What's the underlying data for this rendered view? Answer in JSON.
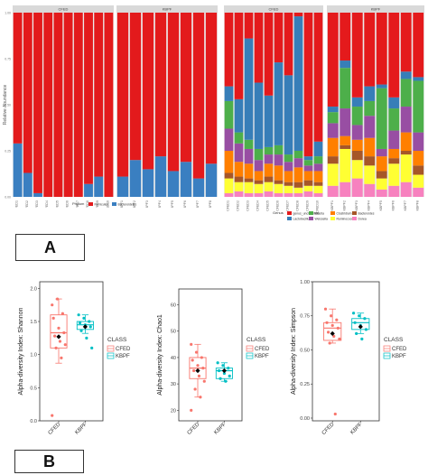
{
  "panel_labels": [
    "A",
    "B"
  ],
  "colors": {
    "firmicutes": "#E31A1C",
    "bacteroidetes": "#3A7FC1",
    "strip_bg": "#D9D9D9",
    "panel_bg": "#EBEBEB",
    "grid": "#FFFFFF",
    "cfed": "#F8766D",
    "kbpf": "#00BFC4",
    "mean": "#000000"
  },
  "chart_data": [
    {
      "type": "bar",
      "stacked": true,
      "panel": "A-left",
      "facets": [
        "CFED",
        "KBPF"
      ],
      "ylabel": "Relative Abundance",
      "ylim": [
        0,
        1
      ],
      "yticks": [
        "0.00",
        "0.25",
        "0.50",
        "0.75",
        "1.00"
      ],
      "legend_title": "Phylum",
      "legend_position": "bottom",
      "grid": true,
      "categories": [
        "CFED1",
        "CFED2",
        "CFED3",
        "CFED4",
        "CFED5",
        "CFED6",
        "CFED7",
        "CFED8",
        "CFED9",
        "CFED10",
        "KBPF1",
        "KBPF2",
        "KBPF3",
        "KBPF4",
        "KBPF5",
        "KBPF6",
        "KBPF7",
        "KBPF8"
      ],
      "category_facet": [
        "CFED",
        "CFED",
        "CFED",
        "CFED",
        "CFED",
        "CFED",
        "CFED",
        "CFED",
        "CFED",
        "CFED",
        "KBPF",
        "KBPF",
        "KBPF",
        "KBPF",
        "KBPF",
        "KBPF",
        "KBPF",
        "KBPF"
      ],
      "series": [
        {
          "name": "Bacteroidetes",
          "color": "#3A7FC1",
          "values": [
            0.29,
            0.13,
            0.02,
            0.0,
            0.0,
            0.0,
            0.0,
            0.07,
            0.11,
            0.0,
            0.11,
            0.2,
            0.15,
            0.22,
            0.14,
            0.19,
            0.1,
            0.18
          ]
        },
        {
          "name": "Firmicutes",
          "color": "#E31A1C",
          "values": [
            0.71,
            0.87,
            0.98,
            1.0,
            1.0,
            1.0,
            1.0,
            0.93,
            0.89,
            1.0,
            0.89,
            0.8,
            0.85,
            0.78,
            0.86,
            0.81,
            0.9,
            0.82
          ]
        }
      ]
    },
    {
      "type": "bar",
      "stacked": true,
      "panel": "A-right",
      "facets": [
        "CFED",
        "KBPF"
      ],
      "ylim": [
        0,
        1
      ],
      "legend_title": "Genus",
      "legend_position": "bottom",
      "grid": true,
      "categories": [
        "CFED1",
        "CFED2",
        "CFED3",
        "CFED4",
        "CFED5",
        "CFED6",
        "CFED7",
        "CFED8",
        "CFED9",
        "CFED10",
        "KBPF1",
        "KBPF2",
        "KBPF3",
        "KBPF4",
        "KBPF5",
        "KBPF6",
        "KBPF7",
        "KBPF8"
      ],
      "category_facet": [
        "CFED",
        "CFED",
        "CFED",
        "CFED",
        "CFED",
        "CFED",
        "CFED",
        "CFED",
        "CFED",
        "CFED",
        "KBPF",
        "KBPF",
        "KBPF",
        "KBPF",
        "KBPF",
        "KBPF",
        "KBPF",
        "KBPF"
      ],
      "series": [
        {
          "name": "Dorea",
          "color": "#F781BF",
          "values": [
            0.02,
            0.03,
            0.02,
            0.02,
            0.03,
            0.02,
            0.02,
            0.02,
            0.03,
            0.02,
            0.06,
            0.08,
            0.1,
            0.07,
            0.04,
            0.06,
            0.08,
            0.05
          ]
        },
        {
          "name": "Ruminococcus",
          "color": "#FFFF33",
          "values": [
            0.08,
            0.05,
            0.06,
            0.05,
            0.05,
            0.05,
            0.04,
            0.03,
            0.03,
            0.04,
            0.12,
            0.18,
            0.1,
            0.1,
            0.06,
            0.12,
            0.15,
            0.07
          ]
        },
        {
          "name": "Bacteroides",
          "color": "#A65628",
          "values": [
            0.03,
            0.03,
            0.02,
            0.02,
            0.03,
            0.02,
            0.02,
            0.03,
            0.03,
            0.02,
            0.04,
            0.02,
            0.05,
            0.05,
            0.04,
            0.03,
            0.02,
            0.05
          ]
        },
        {
          "name": "Clostridium",
          "color": "#FF7F00",
          "values": [
            0.12,
            0.08,
            0.08,
            0.05,
            0.07,
            0.08,
            0.06,
            0.08,
            0.05,
            0.06,
            0.1,
            0.05,
            0.06,
            0.1,
            0.08,
            0.05,
            0.1,
            0.08
          ]
        },
        {
          "name": "Weissella",
          "color": "#984EA3",
          "values": [
            0.12,
            0.1,
            0.08,
            0.06,
            0.05,
            0.06,
            0.05,
            0.05,
            0.03,
            0.04,
            0.08,
            0.15,
            0.08,
            0.12,
            0.04,
            0.1,
            0.14,
            0.1
          ]
        },
        {
          "name": "Blautia",
          "color": "#4DAF4A",
          "values": [
            0.15,
            0.06,
            0.05,
            0.06,
            0.04,
            0.05,
            0.04,
            0.04,
            0.03,
            0.04,
            0.06,
            0.22,
            0.1,
            0.08,
            0.33,
            0.12,
            0.15,
            0.28
          ]
        },
        {
          "name": "Lactobacillus",
          "color": "#377EB8",
          "values": [
            0.08,
            0.18,
            0.55,
            0.36,
            0.28,
            0.45,
            0.43,
            0.73,
            0.02,
            0.08,
            0.03,
            0.04,
            0.05,
            0.08,
            0.02,
            0.06,
            0.04,
            0.02
          ]
        },
        {
          "name": "genus_unclassified",
          "color": "#E41A1C",
          "values": [
            0.4,
            0.47,
            0.14,
            0.38,
            0.45,
            0.27,
            0.34,
            0.02,
            0.78,
            0.7,
            0.51,
            0.26,
            0.46,
            0.4,
            0.39,
            0.46,
            0.32,
            0.35
          ]
        }
      ]
    },
    {
      "type": "box",
      "panel": "B-1",
      "ylabel": "Alpha-diversity Index: Shannon",
      "yticks": [
        "0.0",
        "0.5",
        "1.0",
        "1.5",
        "2.0"
      ],
      "ylim": [
        0,
        2.1
      ],
      "categories": [
        "CFED",
        "KBPF"
      ],
      "legend_title": "CLASS",
      "legend_position": "right",
      "series": [
        {
          "name": "CFED",
          "color": "#F8766D",
          "min": 0.87,
          "q1": 1.1,
          "median": 1.33,
          "q3": 1.6,
          "max": 1.84,
          "mean": 1.27,
          "points": [
            1.75,
            1.84,
            1.62,
            1.55,
            1.4,
            1.33,
            1.28,
            1.2,
            1.15,
            1.1,
            0.95,
            0.08
          ]
        },
        {
          "name": "KBPF",
          "color": "#00BFC4",
          "min": 1.32,
          "q1": 1.38,
          "median": 1.45,
          "q3": 1.5,
          "max": 1.6,
          "mean": 1.42,
          "points": [
            1.6,
            1.55,
            1.5,
            1.48,
            1.45,
            1.42,
            1.36,
            1.25,
            1.1
          ]
        }
      ]
    },
    {
      "type": "box",
      "panel": "B-2",
      "ylabel": "Alpha-diversity Index: Chao1",
      "yticks": [
        "20",
        "30",
        "40",
        "50",
        "60"
      ],
      "ylim": [
        16,
        66
      ],
      "categories": [
        "CFED",
        "KBPF"
      ],
      "legend_title": "CLASS",
      "legend_position": "right",
      "series": [
        {
          "name": "CFED",
          "color": "#F8766D",
          "min": 25,
          "q1": 32,
          "median": 36,
          "q3": 40,
          "max": 45,
          "mean": 35,
          "points": [
            45,
            42,
            40,
            39,
            37,
            36,
            35,
            33,
            31,
            28,
            25,
            20
          ]
        },
        {
          "name": "KBPF",
          "color": "#00BFC4",
          "min": 31,
          "q1": 32,
          "median": 35,
          "q3": 36,
          "max": 38,
          "mean": 35,
          "points": [
            38,
            37,
            36,
            35,
            34,
            33,
            32,
            31
          ]
        }
      ]
    },
    {
      "type": "box",
      "panel": "B-3",
      "ylabel": "Alpha-diversity Index: Simpson",
      "yticks": [
        "0.00",
        "0.25",
        "0.50",
        "0.75",
        "1.00"
      ],
      "ylim": [
        -0.02,
        1.0
      ],
      "categories": [
        "CFED",
        "KBPF"
      ],
      "legend_title": "CLASS",
      "legend_position": "right",
      "series": [
        {
          "name": "CFED",
          "color": "#F8766D",
          "min": 0.55,
          "q1": 0.57,
          "median": 0.66,
          "q3": 0.7,
          "max": 0.8,
          "mean": 0.62,
          "points": [
            0.8,
            0.75,
            0.72,
            0.7,
            0.68,
            0.66,
            0.63,
            0.6,
            0.58,
            0.55,
            0.03
          ]
        },
        {
          "name": "KBPF",
          "color": "#00BFC4",
          "min": 0.62,
          "q1": 0.65,
          "median": 0.7,
          "q3": 0.73,
          "max": 0.77,
          "mean": 0.67,
          "points": [
            0.77,
            0.75,
            0.73,
            0.7,
            0.68,
            0.65,
            0.62,
            0.58
          ]
        }
      ]
    }
  ]
}
